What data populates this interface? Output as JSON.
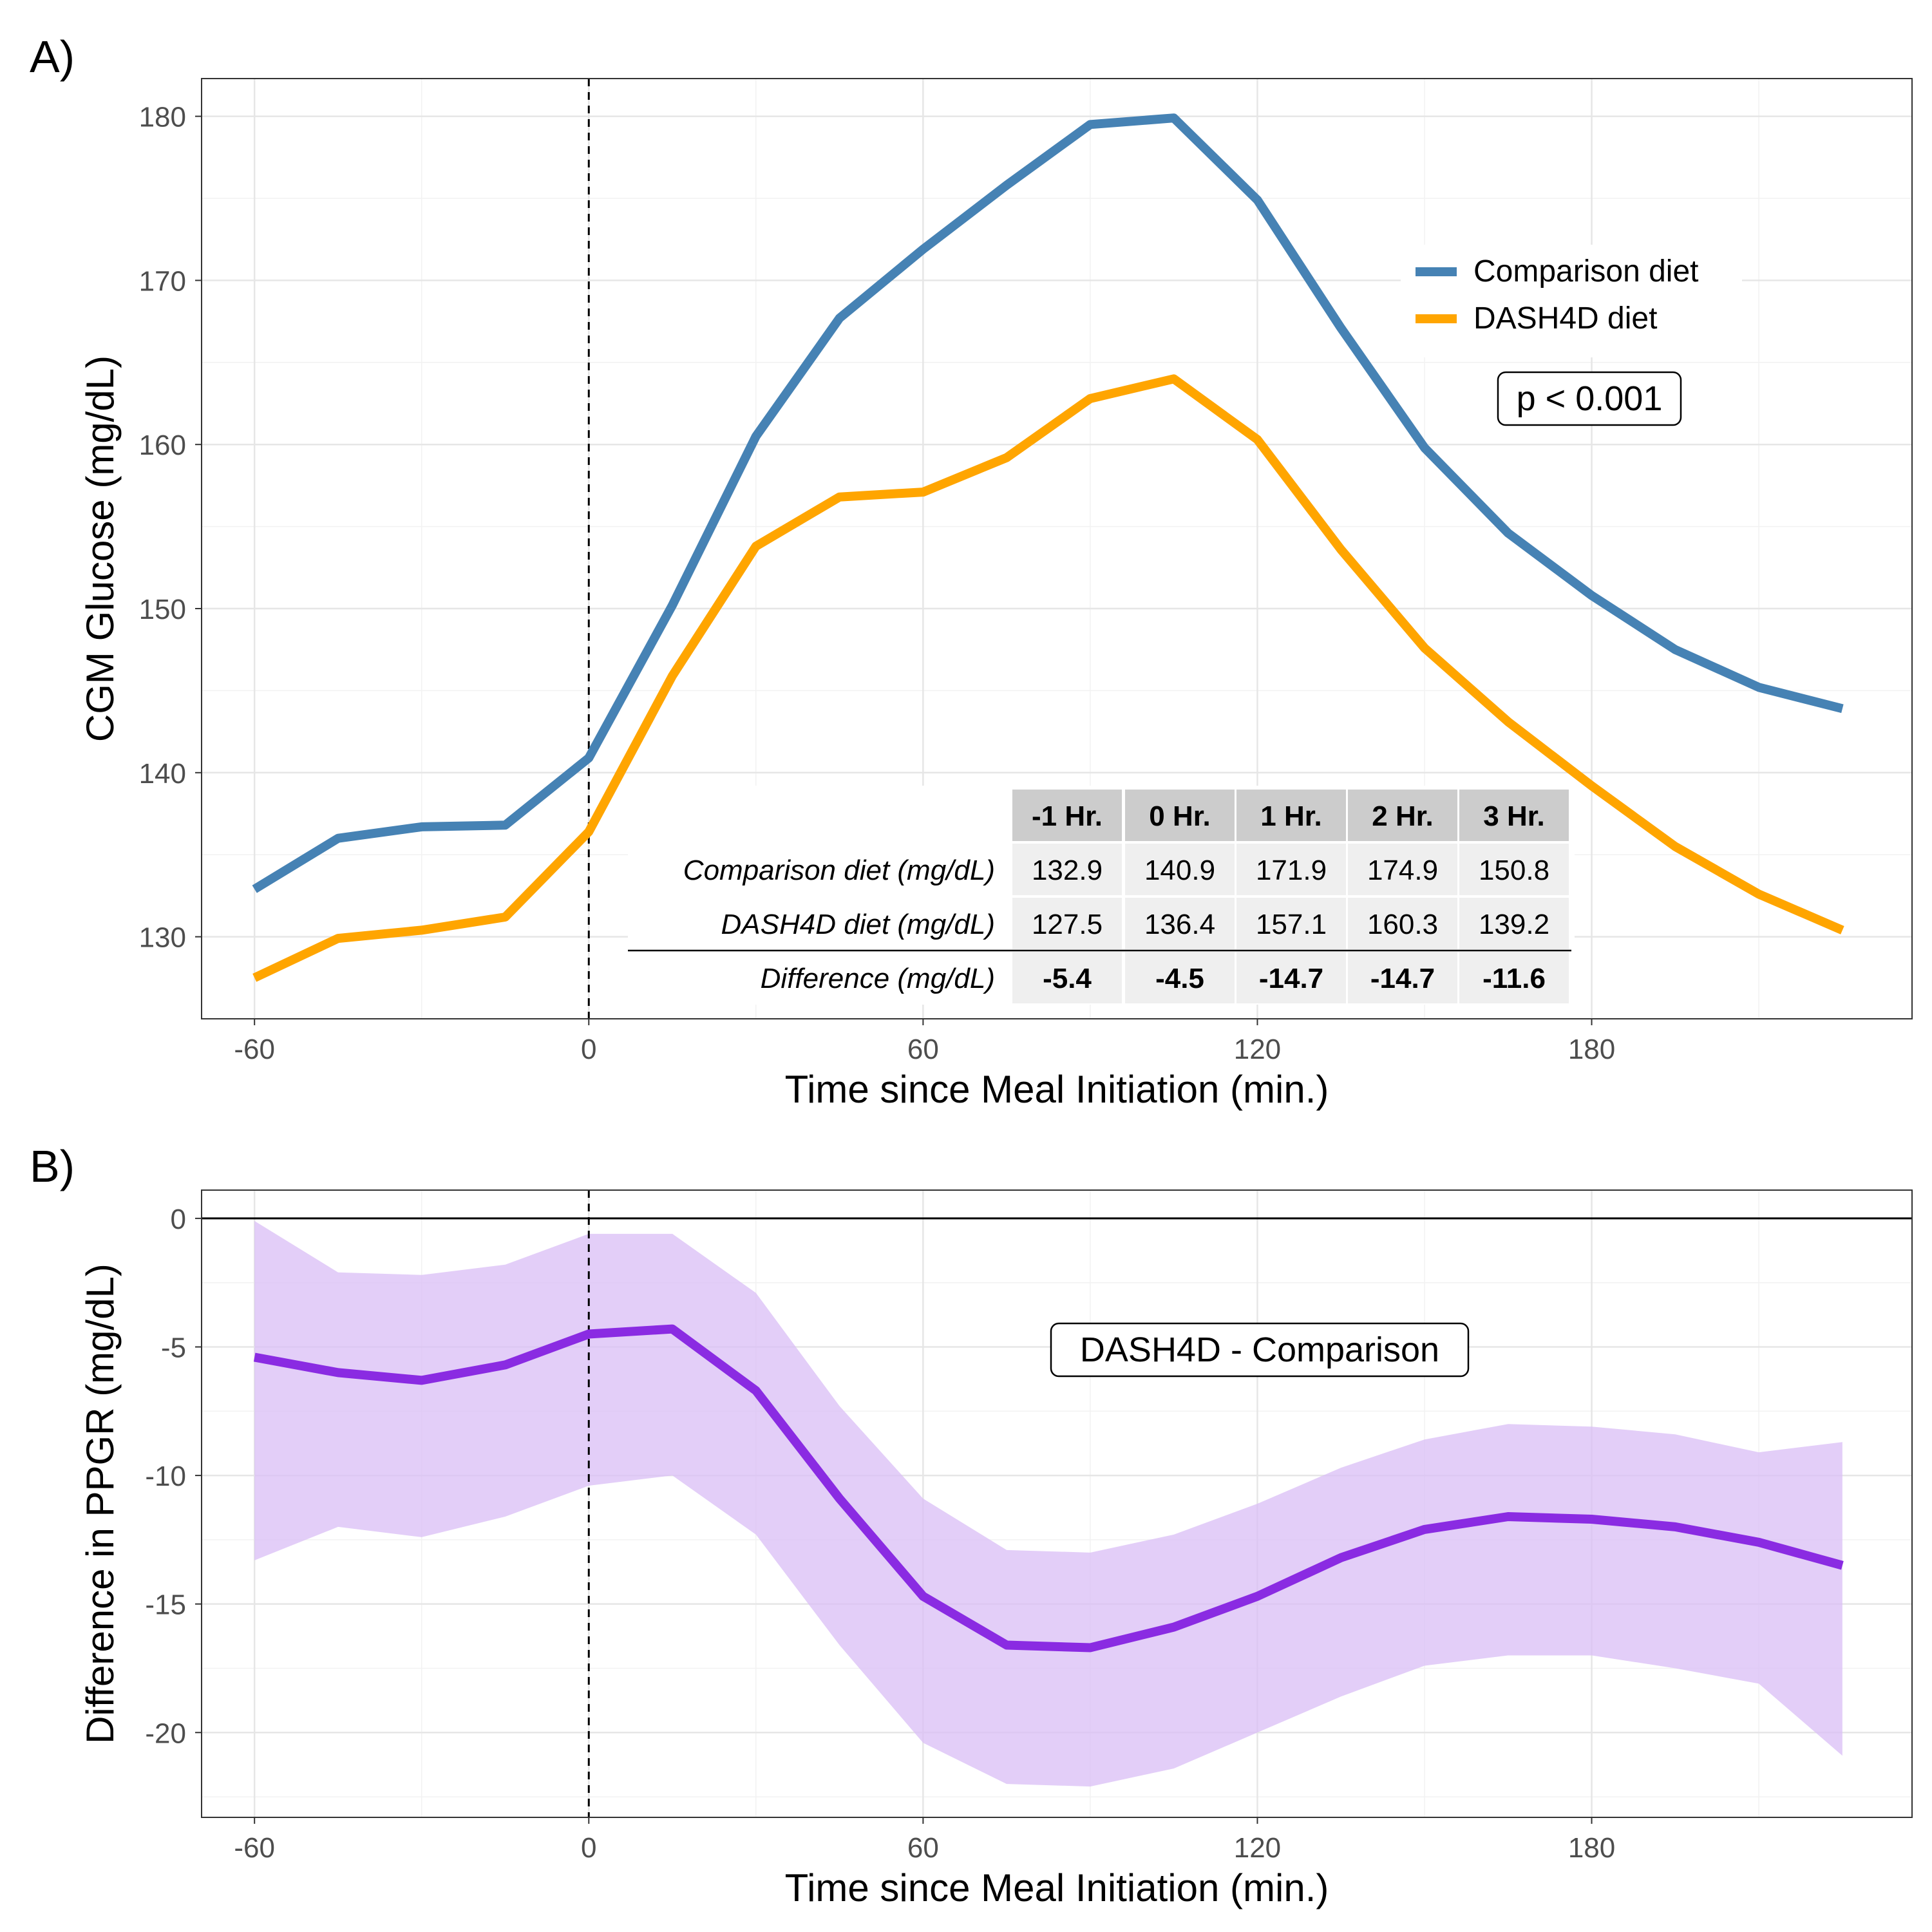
{
  "colors": {
    "comparison": "#4682B4",
    "dash4d": "#FFA500",
    "difference": "#8A2BE2",
    "ribbon": "#D9BEF5",
    "grid_major": "#E6E6E6",
    "grid_minor": "#F2F2F2",
    "table_header_bg": "#CCCCCC",
    "table_cell_bg": "#EFEFEF",
    "axis_text": "#4D4D4D"
  },
  "chart_data": [
    {
      "panel_label": "A)",
      "type": "line",
      "xlabel": "Time since Meal Initiation (min.)",
      "ylabel": "CGM Glucose (mg/dL)",
      "xlim": [
        -69.5,
        237.5
      ],
      "ylim": [
        125,
        182.3
      ],
      "x_ticks": [
        -60,
        0,
        60,
        120,
        180
      ],
      "x_tick_labels": [
        "-60",
        "0",
        "60",
        "120",
        "180"
      ],
      "y_ticks": [
        130,
        140,
        150,
        160,
        170,
        180
      ],
      "y_tick_labels": [
        "130",
        "140",
        "150",
        "160",
        "170",
        "180"
      ],
      "grid": true,
      "vline_x": 0,
      "x": [
        -60,
        -45,
        -30,
        -15,
        0,
        15,
        30,
        45,
        60,
        75,
        90,
        105,
        120,
        135,
        150,
        165,
        180,
        195,
        210,
        225
      ],
      "series": [
        {
          "name": "Comparison diet",
          "color_key": "comparison",
          "values": [
            132.9,
            136.0,
            136.7,
            136.8,
            140.9,
            150.2,
            160.5,
            167.7,
            171.9,
            175.8,
            179.5,
            179.9,
            174.9,
            167.1,
            159.8,
            154.6,
            150.8,
            147.5,
            145.2,
            143.9
          ]
        },
        {
          "name": "DASH4D diet",
          "color_key": "dash4d",
          "values": [
            127.5,
            129.9,
            130.4,
            131.2,
            136.4,
            145.9,
            153.8,
            156.8,
            157.1,
            159.2,
            162.8,
            164.0,
            160.3,
            153.6,
            147.6,
            143.1,
            139.2,
            135.5,
            132.6,
            130.4
          ]
        }
      ],
      "legend": {
        "position": "top-right",
        "items": [
          "Comparison diet",
          "DASH4D diet"
        ]
      },
      "annotation": "p < 0.001",
      "table": {
        "columns": [
          "-1 Hr.",
          "0 Hr.",
          "1 Hr.",
          "2 Hr.",
          "3 Hr."
        ],
        "rows": [
          {
            "label": "Comparison diet (mg/dL)",
            "values": [
              "132.9",
              "140.9",
              "171.9",
              "174.9",
              "150.8"
            ],
            "bold": false
          },
          {
            "label": "DASH4D diet (mg/dL)",
            "values": [
              "127.5",
              "136.4",
              "157.1",
              "160.3",
              "139.2"
            ],
            "bold": false
          },
          {
            "label": "Difference (mg/dL)",
            "values": [
              "-5.4",
              "-4.5",
              "-14.7",
              "-14.7",
              "-11.6"
            ],
            "bold": true
          }
        ]
      }
    },
    {
      "panel_label": "B)",
      "type": "area",
      "xlabel": "Time since Meal Initiation (min.)",
      "ylabel": "Difference in PPGR (mg/dL)",
      "xlim": [
        -69.5,
        237.5
      ],
      "ylim": [
        -23.3,
        1.1
      ],
      "x_ticks": [
        -60,
        0,
        60,
        120,
        180
      ],
      "x_tick_labels": [
        "-60",
        "0",
        "60",
        "120",
        "180"
      ],
      "y_ticks": [
        -20,
        -15,
        -10,
        -5,
        0
      ],
      "y_tick_labels": [
        "-20",
        "-15",
        "-10",
        "-5",
        "0"
      ],
      "grid": true,
      "vline_x": 0,
      "hline_y": 0,
      "x": [
        -60,
        -45,
        -30,
        -15,
        0,
        15,
        30,
        45,
        60,
        75,
        90,
        105,
        120,
        135,
        150,
        165,
        180,
        195,
        210,
        225
      ],
      "series": [
        {
          "name": "DASH4D - Comparison",
          "color_key": "difference",
          "values": [
            -5.4,
            -6.0,
            -6.3,
            -5.7,
            -4.5,
            -4.3,
            -6.7,
            -10.9,
            -14.7,
            -16.6,
            -16.7,
            -15.9,
            -14.7,
            -13.2,
            -12.1,
            -11.6,
            -11.7,
            -12.0,
            -12.6,
            -13.5
          ],
          "ci_upper": [
            -0.1,
            -2.1,
            -2.2,
            -1.8,
            -0.6,
            -0.6,
            -2.9,
            -7.3,
            -10.9,
            -12.9,
            -13.0,
            -12.3,
            -11.1,
            -9.7,
            -8.6,
            -8.0,
            -8.1,
            -8.4,
            -9.1,
            -8.7
          ],
          "ci_lower": [
            -13.3,
            -12.0,
            -12.4,
            -11.6,
            -10.4,
            -10.0,
            -12.3,
            -16.6,
            -20.4,
            -22.0,
            -22.1,
            -21.4,
            -20.0,
            -18.6,
            -17.4,
            -17.0,
            -17.0,
            -17.5,
            -18.1,
            -20.9
          ]
        }
      ],
      "annotation": "DASH4D - Comparison"
    }
  ]
}
